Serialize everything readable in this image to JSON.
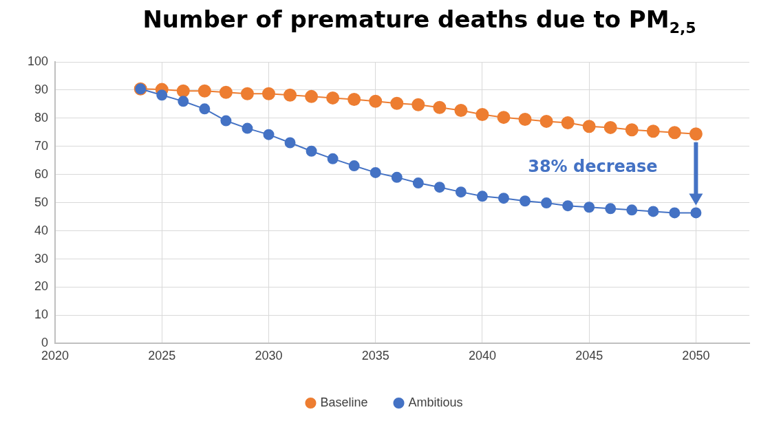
{
  "chart_data": {
    "type": "line",
    "title": "Number of premature deaths due to PM$_{2,5}$",
    "x": [
      2024,
      2025,
      2026,
      2027,
      2028,
      2029,
      2030,
      2031,
      2032,
      2033,
      2034,
      2035,
      2036,
      2037,
      2038,
      2039,
      2040,
      2041,
      2042,
      2043,
      2044,
      2045,
      2046,
      2047,
      2048,
      2049,
      2050
    ],
    "series": [
      {
        "name": "Baseline",
        "color": "#ed7d31",
        "values": [
          90.4,
          90.2,
          89.7,
          89.7,
          89.2,
          88.7,
          88.7,
          88.2,
          87.7,
          87.2,
          86.7,
          86.0,
          85.3,
          84.8,
          83.8,
          82.8,
          81.3,
          80.3,
          79.6,
          78.9,
          78.4,
          77.1,
          76.7,
          75.9,
          75.4,
          74.9,
          74.4
        ]
      },
      {
        "name": "Ambitious",
        "color": "#4472c4",
        "values": [
          90.4,
          88.2,
          86.0,
          83.3,
          79.1,
          76.4,
          74.2,
          71.3,
          68.3,
          65.6,
          63.1,
          60.7,
          59.0,
          57.0,
          55.5,
          53.8,
          52.3,
          51.6,
          50.6,
          49.9,
          48.9,
          48.4,
          47.9,
          47.4,
          46.9,
          46.4,
          46.4
        ]
      }
    ],
    "xlim": [
      2020,
      2052.5
    ],
    "xticks": [
      2020,
      2025,
      2030,
      2035,
      2040,
      2045,
      2050
    ],
    "ylim": [
      0,
      100
    ],
    "yticks": [
      0,
      10,
      20,
      30,
      40,
      50,
      60,
      70,
      80,
      90,
      100
    ],
    "annotations": [
      "38% decrease"
    ],
    "grid": true,
    "legend": "bottom",
    "marker": "circle",
    "line_style": "solid"
  }
}
